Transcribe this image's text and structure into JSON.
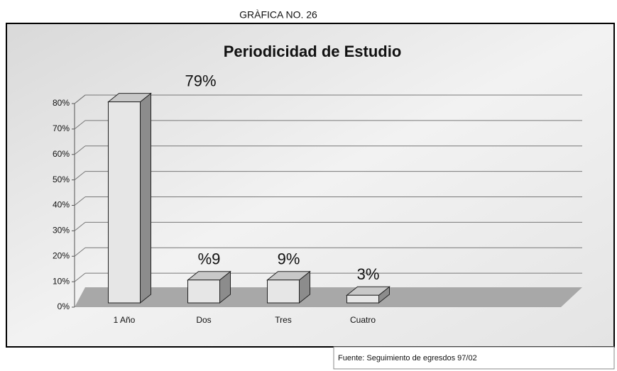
{
  "chart_data": {
    "type": "bar",
    "caption": "GRÀFICA NO. 26",
    "title": "Periodicidad de Estudio",
    "source": "Fuente: Seguimiento de egresdos 97/02",
    "categories": [
      "1 Año",
      "Dos",
      "Tres",
      "Cuatro"
    ],
    "values": [
      79,
      9,
      9,
      3
    ],
    "value_labels": [
      "79%",
      "%9",
      "9%",
      "3%"
    ],
    "color": "#e6e6e6",
    "ylim": [
      0,
      80
    ],
    "yticks": [
      {
        "value": 0,
        "label": "0%"
      },
      {
        "value": 10,
        "label": "10%"
      },
      {
        "value": 20,
        "label": "20%"
      },
      {
        "value": 30,
        "label": "30%"
      },
      {
        "value": 40,
        "label": "40%"
      },
      {
        "value": 50,
        "label": "50%"
      },
      {
        "value": 60,
        "label": "60%"
      },
      {
        "value": 70,
        "label": "70%"
      },
      {
        "value": 80,
        "label": "80%"
      }
    ],
    "grid": true
  }
}
